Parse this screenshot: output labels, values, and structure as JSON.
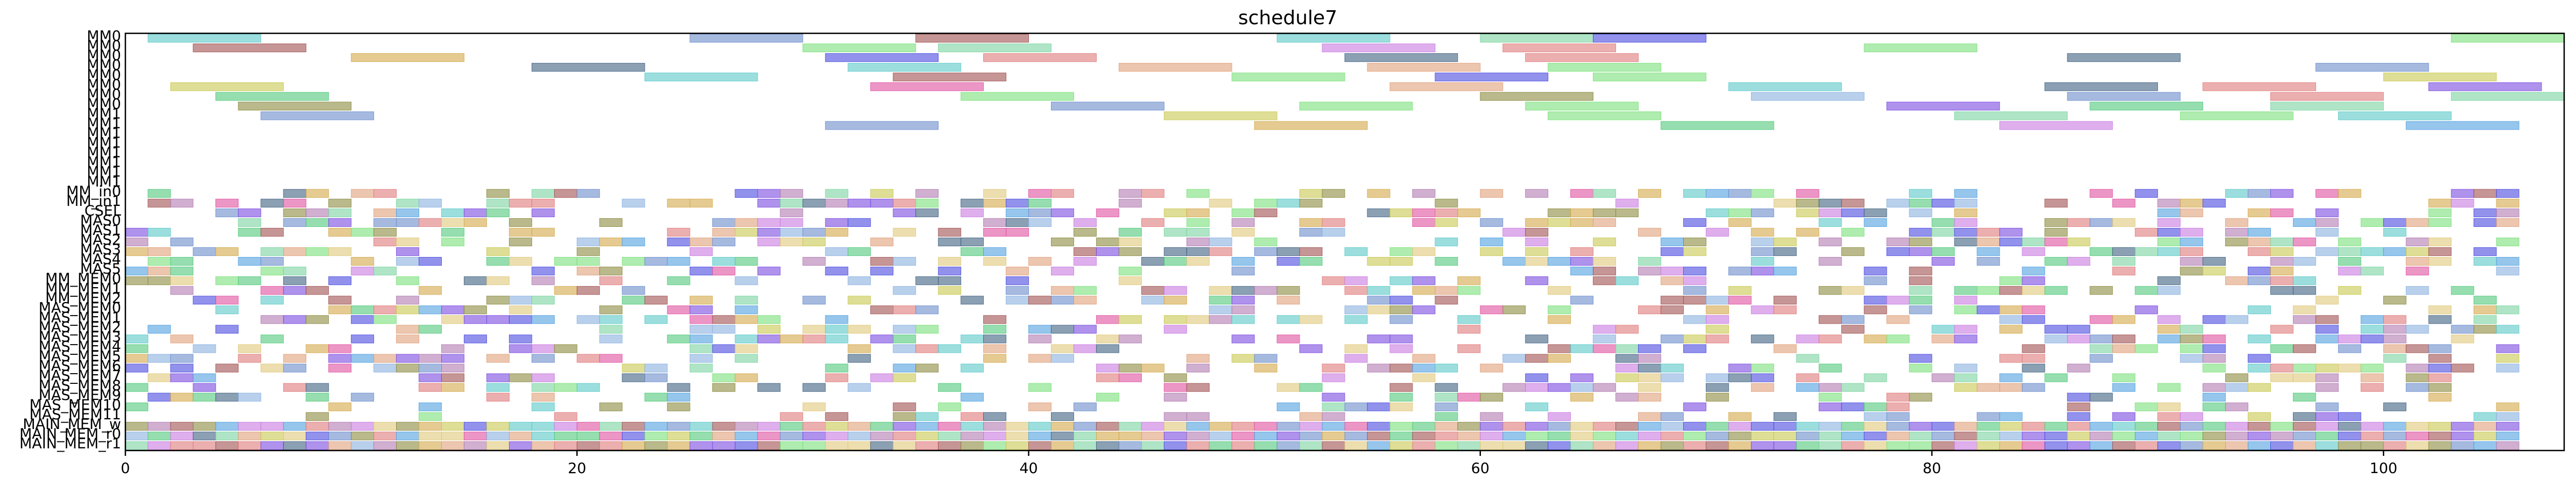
{
  "chart_data": {
    "type": "gantt",
    "title": "schedule7",
    "xlabel": "",
    "ylabel": "",
    "xlim": [
      0,
      108
    ],
    "x_ticks": [
      0,
      20,
      40,
      60,
      80,
      100
    ],
    "rows": [
      "MM0",
      "MM0",
      "MM0",
      "MM0",
      "MM0",
      "MM0",
      "MM0",
      "MM0",
      "MM1",
      "MM1",
      "MM1",
      "MM1",
      "MM1",
      "MM1",
      "MM1",
      "MM1",
      "MM_in0",
      "MM_in1",
      "CSEL",
      "MAS0",
      "MAS1",
      "MAS2",
      "MAS3",
      "MAS4",
      "MAS5",
      "MM_MEM0",
      "MM_MEM1",
      "MM_MEM2",
      "MAS_MEM0",
      "MAS_MEM1",
      "MAS_MEM2",
      "MAS_MEM3",
      "MAS_MEM4",
      "MAS_MEM5",
      "MAS_MEM6",
      "MAS_MEM7",
      "MAS_MEM8",
      "MAS_MEM9",
      "MAS_MEM10",
      "MAS_MEM11",
      "MAIN_MEM_w",
      "MAIN_MEM_r0",
      "MAIN_MEM_r1"
    ],
    "palette": [
      "#6a8ccc",
      "#e07a7a",
      "#7ae07a",
      "#d4a84a",
      "#5ac8c8",
      "#b07ab0",
      "#4a4ae0",
      "#e0a07a",
      "#8ab0e0",
      "#c8c850",
      "#50c87a",
      "#e050a0",
      "#8a8a40",
      "#7a4ae0",
      "#e0c87a",
      "#50a0e0",
      "#a05050",
      "#7ad4a0",
      "#c87ae0",
      "#406080"
    ],
    "long_bars": [
      {
        "row": 0,
        "start": 1,
        "end": 6,
        "c": 4
      },
      {
        "row": 0,
        "start": 25,
        "end": 30,
        "c": 0
      },
      {
        "row": 0,
        "start": 35,
        "end": 40,
        "c": 16
      },
      {
        "row": 0,
        "start": 51,
        "end": 56,
        "c": 4
      },
      {
        "row": 0,
        "start": 60,
        "end": 65,
        "c": 17
      },
      {
        "row": 0,
        "start": 65,
        "end": 70,
        "c": 6
      },
      {
        "row": 0,
        "start": 103,
        "end": 108,
        "c": 2
      },
      {
        "row": 1,
        "start": 3,
        "end": 8,
        "c": 16
      },
      {
        "row": 1,
        "start": 30,
        "end": 35,
        "c": 2
      },
      {
        "row": 1,
        "start": 36,
        "end": 41,
        "c": 17
      },
      {
        "row": 1,
        "start": 53,
        "end": 58,
        "c": 18
      },
      {
        "row": 1,
        "start": 61,
        "end": 66,
        "c": 1
      },
      {
        "row": 1,
        "start": 77,
        "end": 82,
        "c": 2
      },
      {
        "row": 2,
        "start": 10,
        "end": 15,
        "c": 3
      },
      {
        "row": 2,
        "start": 31,
        "end": 36,
        "c": 6
      },
      {
        "row": 2,
        "start": 38,
        "end": 43,
        "c": 1
      },
      {
        "row": 2,
        "start": 54,
        "end": 59,
        "c": 19
      },
      {
        "row": 2,
        "start": 62,
        "end": 67,
        "c": 1
      },
      {
        "row": 2,
        "start": 86,
        "end": 91,
        "c": 19
      },
      {
        "row": 3,
        "start": 18,
        "end": 23,
        "c": 19
      },
      {
        "row": 3,
        "start": 32,
        "end": 37,
        "c": 4
      },
      {
        "row": 3,
        "start": 44,
        "end": 49,
        "c": 7
      },
      {
        "row": 3,
        "start": 55,
        "end": 60,
        "c": 7
      },
      {
        "row": 3,
        "start": 63,
        "end": 68,
        "c": 2
      },
      {
        "row": 3,
        "start": 97,
        "end": 102,
        "c": 0
      },
      {
        "row": 4,
        "start": 23,
        "end": 28,
        "c": 4
      },
      {
        "row": 4,
        "start": 34,
        "end": 39,
        "c": 16
      },
      {
        "row": 4,
        "start": 49,
        "end": 54,
        "c": 2
      },
      {
        "row": 4,
        "start": 58,
        "end": 63,
        "c": 6
      },
      {
        "row": 4,
        "start": 65,
        "end": 70,
        "c": 2
      },
      {
        "row": 4,
        "start": 100,
        "end": 105,
        "c": 9
      },
      {
        "row": 5,
        "start": 2,
        "end": 7,
        "c": 9
      },
      {
        "row": 5,
        "start": 33,
        "end": 38,
        "c": 11
      },
      {
        "row": 5,
        "start": 56,
        "end": 61,
        "c": 7
      },
      {
        "row": 5,
        "start": 71,
        "end": 76,
        "c": 4
      },
      {
        "row": 5,
        "start": 85,
        "end": 90,
        "c": 19
      },
      {
        "row": 5,
        "start": 92,
        "end": 97,
        "c": 1
      },
      {
        "row": 5,
        "start": 102,
        "end": 107,
        "c": 13
      },
      {
        "row": 6,
        "start": 4,
        "end": 9,
        "c": 10
      },
      {
        "row": 6,
        "start": 37,
        "end": 42,
        "c": 2
      },
      {
        "row": 6,
        "start": 60,
        "end": 65,
        "c": 12
      },
      {
        "row": 6,
        "start": 72,
        "end": 77,
        "c": 8
      },
      {
        "row": 6,
        "start": 86,
        "end": 91,
        "c": 0
      },
      {
        "row": 6,
        "start": 95,
        "end": 100,
        "c": 1
      },
      {
        "row": 6,
        "start": 103,
        "end": 108,
        "c": 17
      },
      {
        "row": 7,
        "start": 5,
        "end": 10,
        "c": 12
      },
      {
        "row": 7,
        "start": 41,
        "end": 46,
        "c": 0
      },
      {
        "row": 7,
        "start": 52,
        "end": 57,
        "c": 2
      },
      {
        "row": 7,
        "start": 62,
        "end": 67,
        "c": 2
      },
      {
        "row": 7,
        "start": 78,
        "end": 83,
        "c": 13
      },
      {
        "row": 7,
        "start": 87,
        "end": 92,
        "c": 10
      },
      {
        "row": 7,
        "start": 95,
        "end": 100,
        "c": 17
      },
      {
        "row": 8,
        "start": 6,
        "end": 11,
        "c": 0
      },
      {
        "row": 8,
        "start": 46,
        "end": 51,
        "c": 9
      },
      {
        "row": 8,
        "start": 63,
        "end": 68,
        "c": 2
      },
      {
        "row": 8,
        "start": 81,
        "end": 86,
        "c": 17
      },
      {
        "row": 8,
        "start": 91,
        "end": 96,
        "c": 2
      },
      {
        "row": 8,
        "start": 98,
        "end": 103,
        "c": 4
      },
      {
        "row": 9,
        "start": 31,
        "end": 36,
        "c": 0
      },
      {
        "row": 9,
        "start": 50,
        "end": 55,
        "c": 3
      },
      {
        "row": 9,
        "start": 68,
        "end": 73,
        "c": 10
      },
      {
        "row": 9,
        "start": 83,
        "end": 88,
        "c": 18
      },
      {
        "row": 9,
        "start": 101,
        "end": 106,
        "c": 15
      }
    ],
    "short_rows": [
      16,
      17,
      18,
      19,
      20,
      21,
      22,
      23,
      24,
      25,
      26,
      27,
      28,
      29,
      30,
      31,
      32,
      33,
      34,
      35,
      36,
      37,
      38,
      39,
      40,
      41,
      42
    ],
    "short_duration": 1
  }
}
